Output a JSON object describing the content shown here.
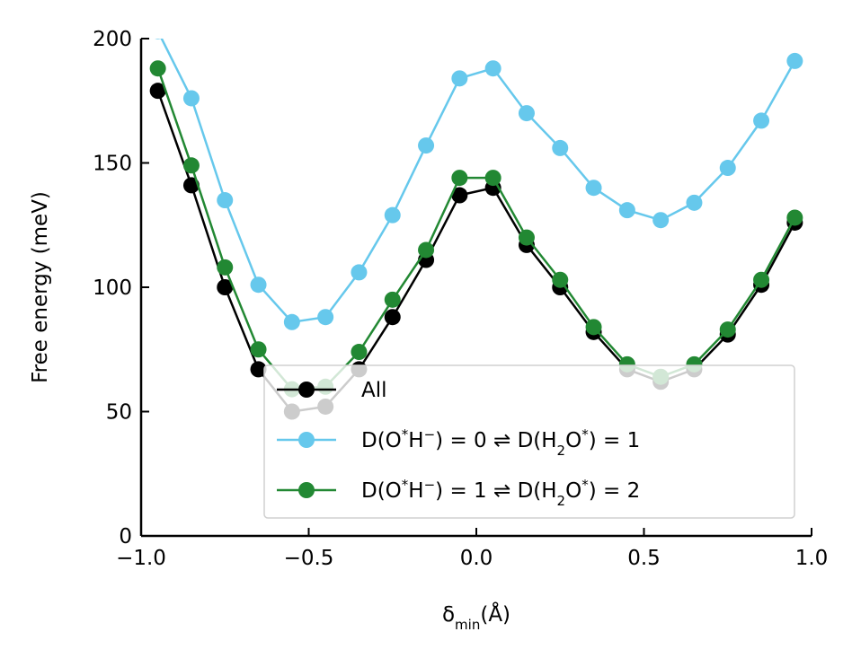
{
  "chart_data": {
    "type": "line",
    "xlabel": "δmin(Å)",
    "xlabel_main": "δ",
    "xlabel_sub": "min",
    "xlabel_unit": "(Å)",
    "ylabel": "Free energy (meV)",
    "xlim": [
      -1.0,
      1.0
    ],
    "ylim": [
      0,
      200
    ],
    "xticks": [
      -1.0,
      -0.5,
      0.0,
      0.5,
      1.0
    ],
    "xtick_labels": [
      "−1.0",
      "−0.5",
      "0.0",
      "0.5",
      "1.0"
    ],
    "yticks": [
      0,
      50,
      100,
      150,
      200
    ],
    "ytick_labels": [
      "0",
      "50",
      "100",
      "150",
      "200"
    ],
    "grid": false,
    "legend_position": "lower-right",
    "x": [
      -0.95,
      -0.85,
      -0.75,
      -0.65,
      -0.55,
      -0.45,
      -0.35,
      -0.25,
      -0.15,
      -0.05,
      0.05,
      0.15,
      0.25,
      0.35,
      0.45,
      0.55,
      0.65,
      0.75,
      0.85,
      0.95
    ],
    "series": [
      {
        "name": "All",
        "color": "#000000",
        "values": [
          179,
          141,
          100,
          67,
          50,
          52,
          67,
          88,
          111,
          137,
          140,
          117,
          100,
          82,
          67,
          62,
          67,
          81,
          101,
          126
        ]
      },
      {
        "name": "D(O*H−) = 0 ⇌ D(H2O*) = 1",
        "color": "#66c8ec",
        "values": [
          203,
          176,
          135,
          101,
          86,
          88,
          106,
          129,
          157,
          184,
          188,
          170,
          156,
          140,
          131,
          127,
          134,
          148,
          167,
          191
        ]
      },
      {
        "name": "D(O*H−) = 1 ⇌ D(H2O*) = 2",
        "color": "#228833",
        "values": [
          188,
          149,
          108,
          75,
          59,
          60,
          74,
          95,
          115,
          144,
          144,
          120,
          103,
          84,
          69,
          64,
          69,
          83,
          103,
          128
        ]
      }
    ]
  }
}
